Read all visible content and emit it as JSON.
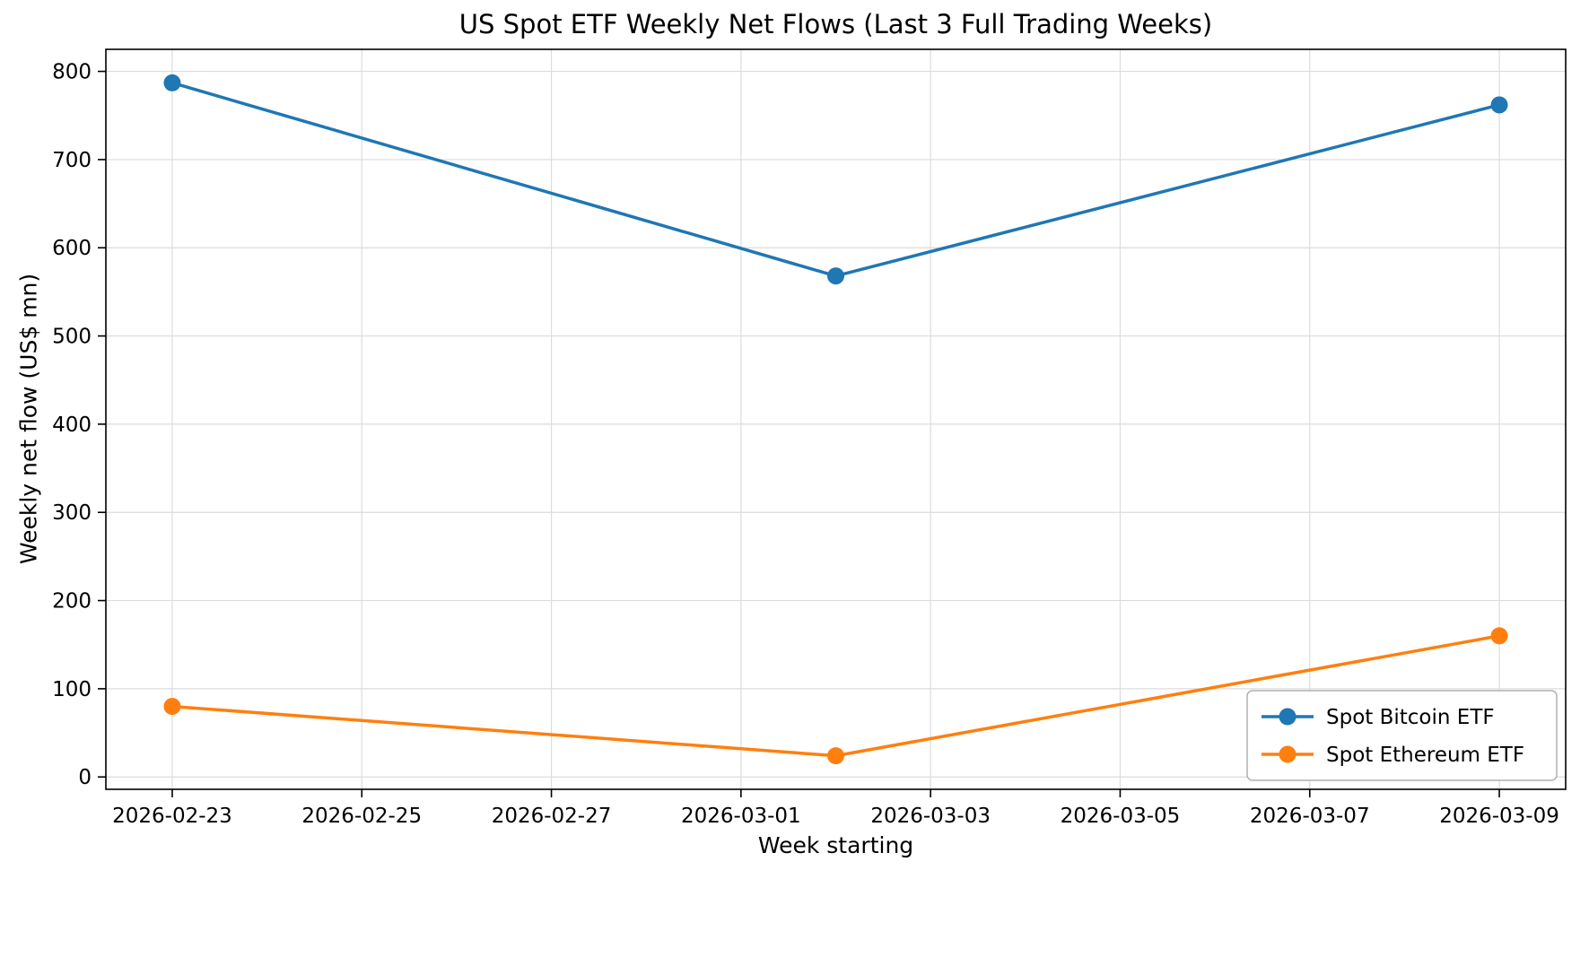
{
  "chart_data": {
    "type": "line",
    "title": "US Spot ETF Weekly Net Flows (Last 3 Full Trading Weeks)",
    "xlabel": "Week starting",
    "ylabel": "Weekly net flow (US$ mn)",
    "x_dates": [
      "2026-02-23",
      "2026-03-02",
      "2026-03-09"
    ],
    "x_days": [
      0,
      7,
      14
    ],
    "series": [
      {
        "name": "Spot Bitcoin ETF",
        "color": "#1f77b4",
        "values": [
          787,
          568,
          762
        ]
      },
      {
        "name": "Spot Ethereum ETF",
        "color": "#ff7f0e",
        "values": [
          80,
          24,
          160
        ]
      }
    ],
    "x_tick_labels": [
      "2026-02-23",
      "2026-02-25",
      "2026-02-27",
      "2026-03-01",
      "2026-03-03",
      "2026-03-05",
      "2026-03-07",
      "2026-03-09"
    ],
    "x_tick_days": [
      0,
      2,
      4,
      6,
      8,
      10,
      12,
      14
    ],
    "y_ticks": [
      0,
      100,
      200,
      300,
      400,
      500,
      600,
      700,
      800
    ],
    "xlim": [
      -0.7,
      14.7
    ],
    "ylim": [
      -14,
      825
    ],
    "grid": true,
    "legend_position": "lower right"
  }
}
